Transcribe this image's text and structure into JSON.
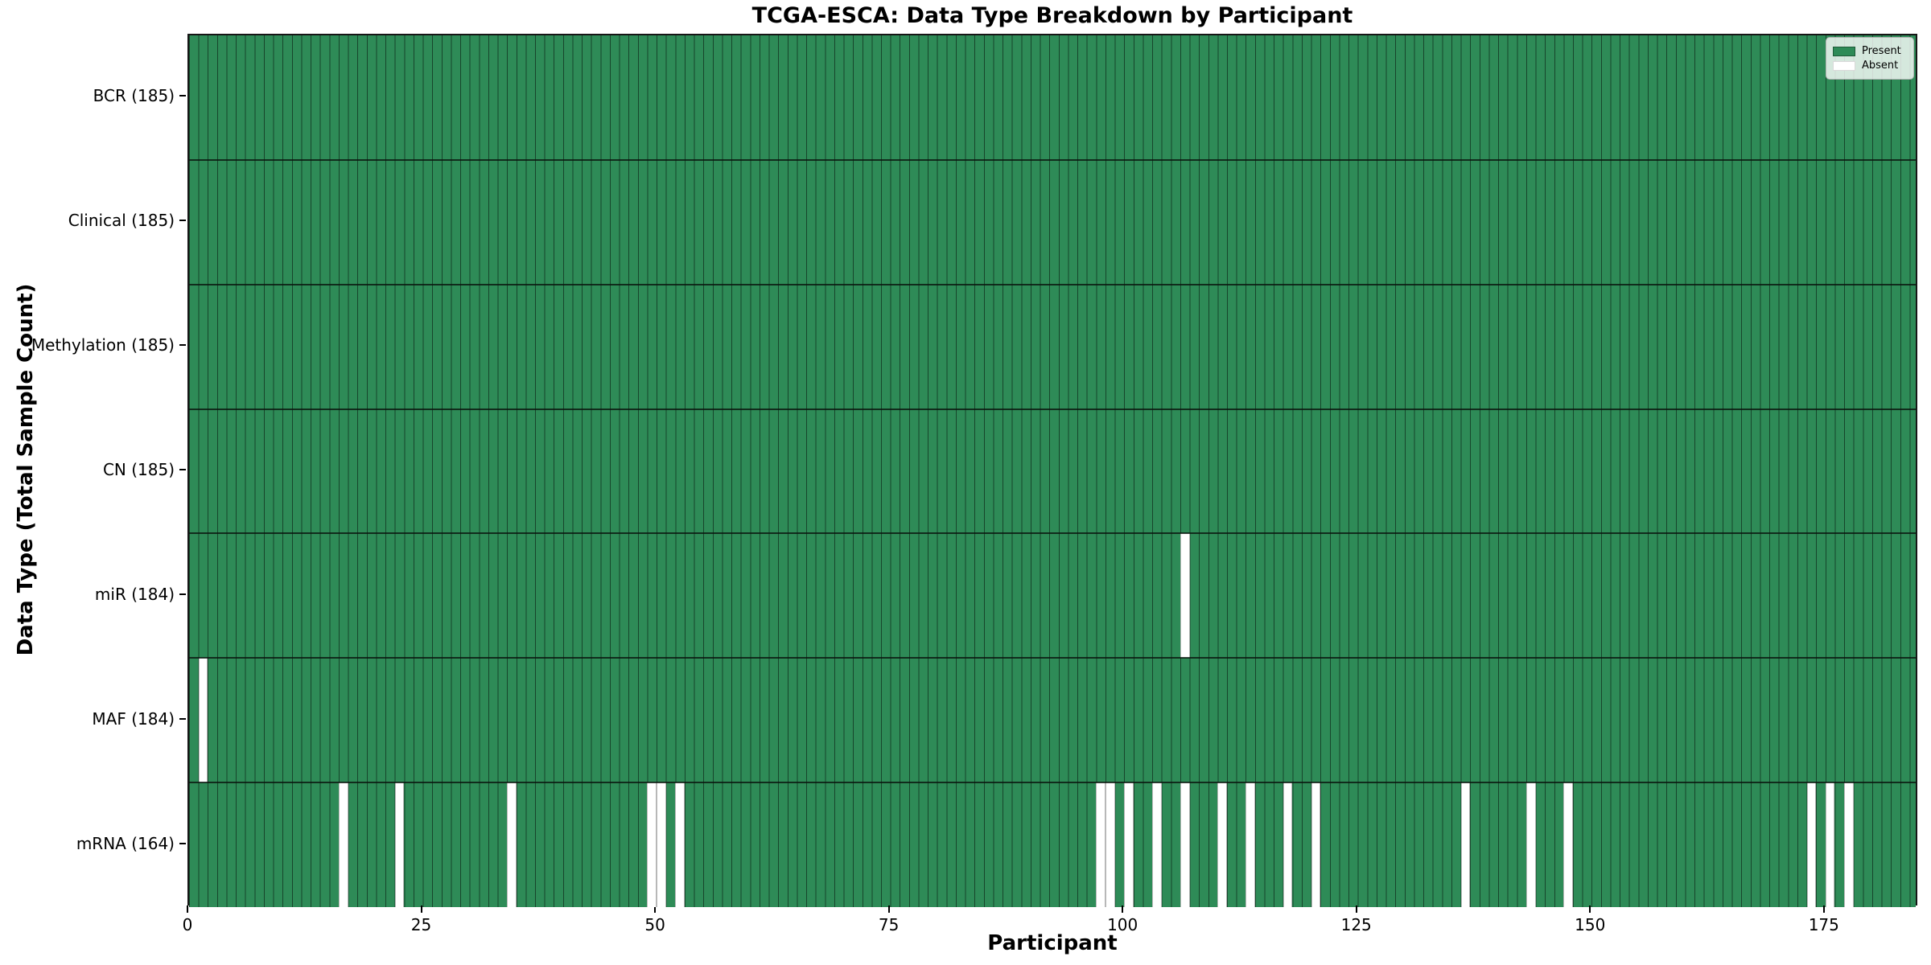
{
  "chart_data": {
    "type": "heatmap",
    "title": "TCGA-ESCA: Data Type Breakdown by Participant",
    "xlabel": "Participant",
    "ylabel": "Data Type (Total Sample Count)",
    "n_participants": 185,
    "x_ticks": [
      0,
      25,
      50,
      75,
      100,
      125,
      150,
      175
    ],
    "cell_states": [
      "Present",
      "Absent"
    ],
    "colors": {
      "present": "#2e8b57",
      "absent": "#ffffff",
      "cell_edge": "rgba(0,0,0,0.5)",
      "row_separator": "rgba(10,20,14,0.8)"
    },
    "legend": [
      {
        "label": "Present",
        "color": "#2e8b57"
      },
      {
        "label": "Absent",
        "color": "#ffffff"
      }
    ],
    "legend_position": "upper right",
    "grid": true,
    "rows": [
      {
        "label": "BCR (185)",
        "data_type": "BCR",
        "total": 185,
        "absent_participants": []
      },
      {
        "label": "Clinical (185)",
        "data_type": "Clinical",
        "total": 185,
        "absent_participants": []
      },
      {
        "label": "Methylation (185)",
        "data_type": "Methylation",
        "total": 185,
        "absent_participants": []
      },
      {
        "label": "CN (185)",
        "data_type": "CN",
        "total": 185,
        "absent_participants": []
      },
      {
        "label": "miR (184)",
        "data_type": "miR",
        "total": 184,
        "absent_participants": [
          106
        ]
      },
      {
        "label": "MAF (184)",
        "data_type": "MAF",
        "total": 184,
        "absent_participants": [
          1
        ]
      },
      {
        "label": "mRNA (164)",
        "data_type": "mRNA",
        "total": 164,
        "absent_participants": [
          16,
          22,
          34,
          49,
          50,
          52,
          97,
          98,
          100,
          103,
          106,
          110,
          113,
          117,
          120,
          136,
          143,
          147,
          173,
          175,
          177
        ]
      }
    ]
  }
}
